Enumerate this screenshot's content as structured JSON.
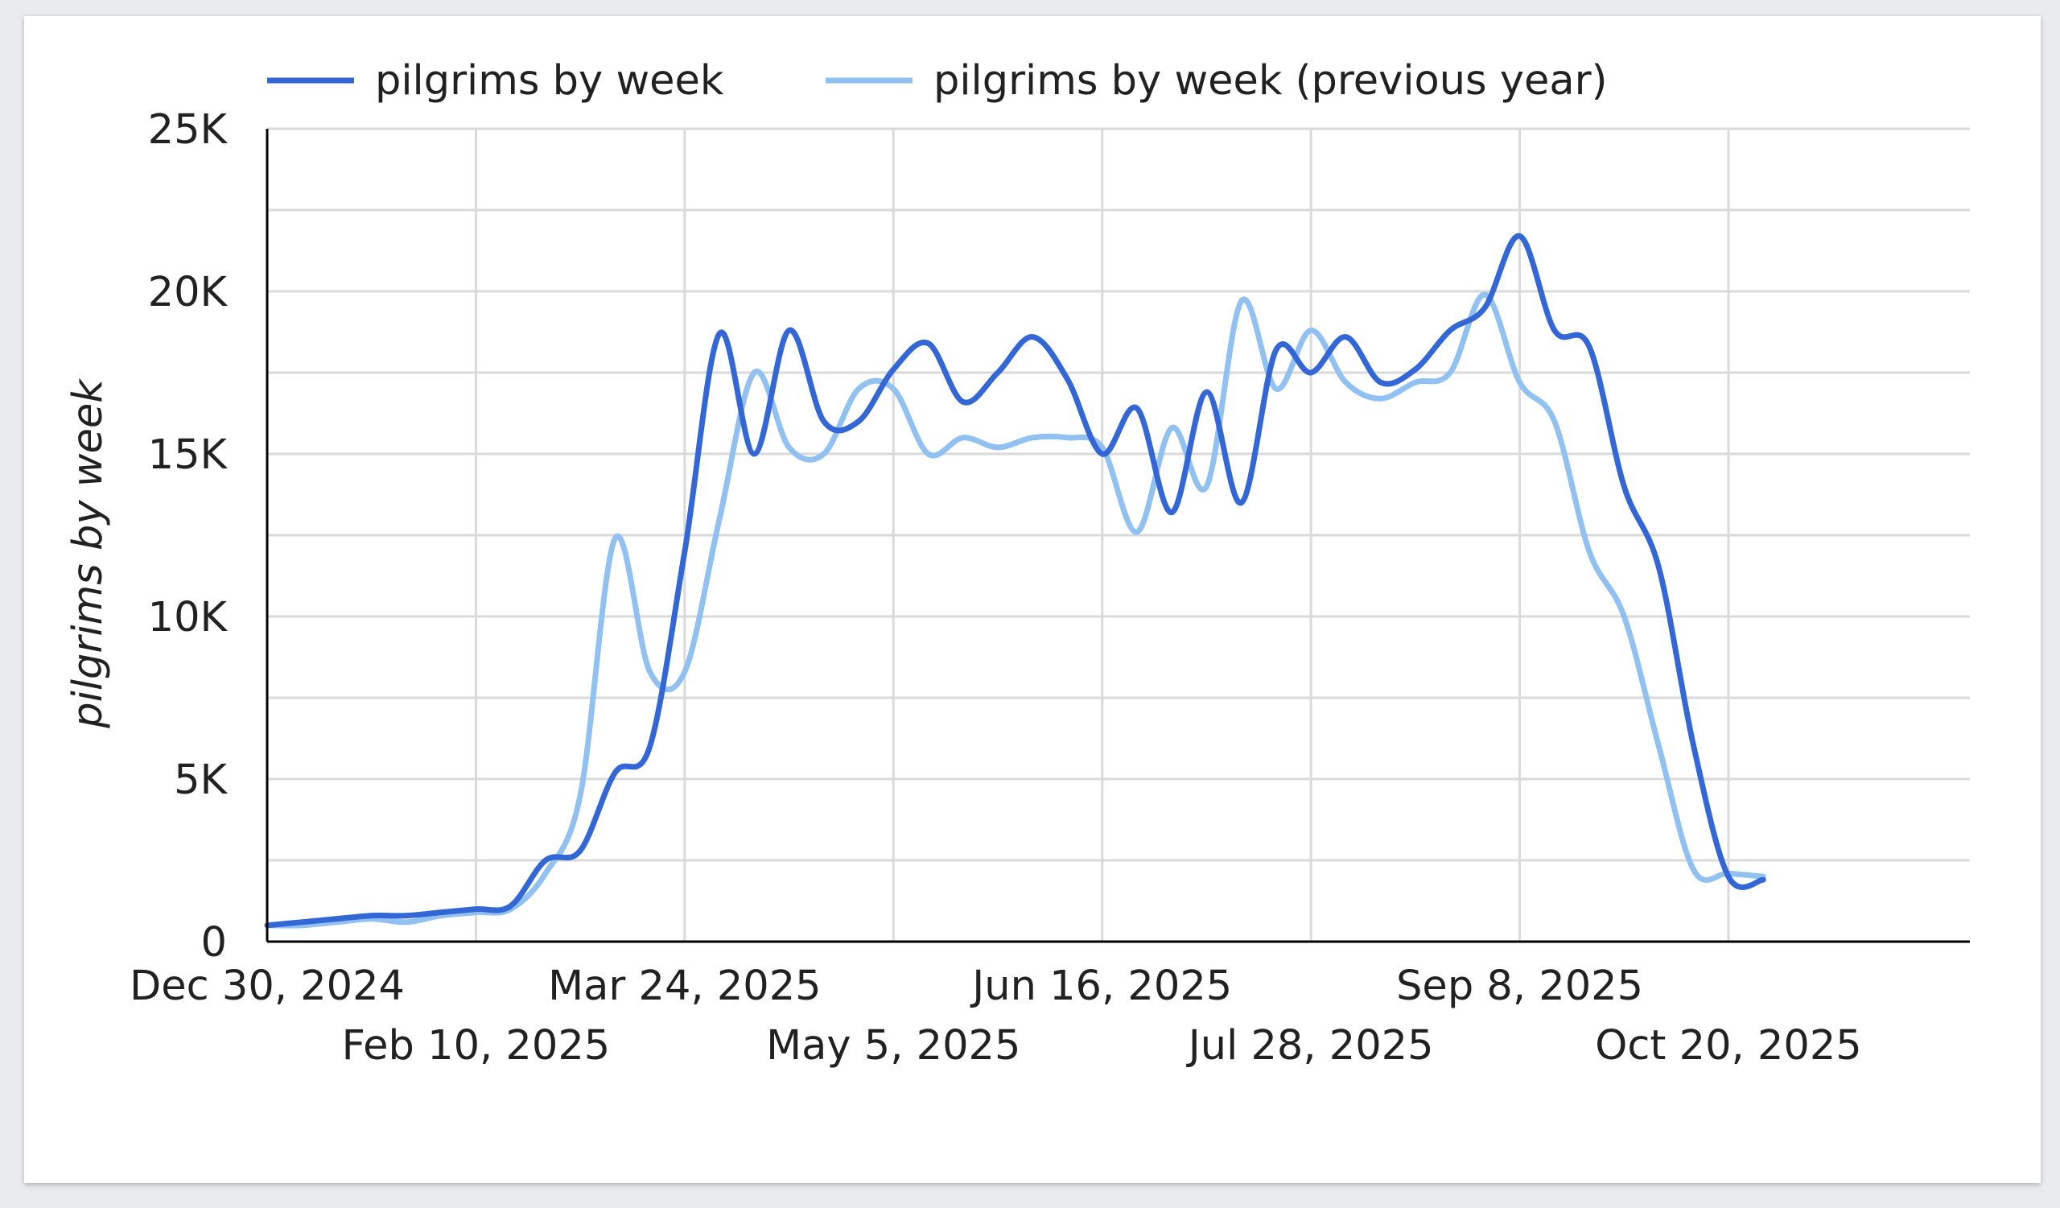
{
  "chart_data": {
    "type": "line",
    "title": "",
    "xlabel": "",
    "ylabel": "pilgrims by week",
    "ylim": [
      0,
      25000
    ],
    "yticks": [
      {
        "value": 0,
        "label": "0"
      },
      {
        "value": 5000,
        "label": "5K"
      },
      {
        "value": 10000,
        "label": "10K"
      },
      {
        "value": 15000,
        "label": "15K"
      },
      {
        "value": 20000,
        "label": "20K"
      },
      {
        "value": 25000,
        "label": "25K"
      }
    ],
    "xlim": [
      "2024-12-30",
      "2025-10-20"
    ],
    "xticks": [
      {
        "date": "2024-12-30",
        "label": "Dec 30, 2024",
        "row": 0
      },
      {
        "date": "2025-02-10",
        "label": "Feb 10, 2025",
        "row": 1
      },
      {
        "date": "2025-03-24",
        "label": "Mar 24, 2025",
        "row": 0
      },
      {
        "date": "2025-05-05",
        "label": "May 5, 2025",
        "row": 1
      },
      {
        "date": "2025-06-16",
        "label": "Jun 16, 2025",
        "row": 0
      },
      {
        "date": "2025-07-28",
        "label": "Jul 28, 2025",
        "row": 1
      },
      {
        "date": "2025-09-08",
        "label": "Sep 8, 2025",
        "row": 0
      },
      {
        "date": "2025-10-20",
        "label": "Oct 20, 2025",
        "row": 1
      }
    ],
    "grid": true,
    "legend_position": "top-left",
    "x": [
      "2024-12-30",
      "2025-01-06",
      "2025-01-13",
      "2025-01-20",
      "2025-01-27",
      "2025-02-03",
      "2025-02-10",
      "2025-02-17",
      "2025-02-24",
      "2025-03-03",
      "2025-03-10",
      "2025-03-17",
      "2025-03-24",
      "2025-03-31",
      "2025-04-07",
      "2025-04-14",
      "2025-04-21",
      "2025-04-28",
      "2025-05-05",
      "2025-05-12",
      "2025-05-19",
      "2025-05-26",
      "2025-06-02",
      "2025-06-09",
      "2025-06-16",
      "2025-06-23",
      "2025-06-30",
      "2025-07-07",
      "2025-07-14",
      "2025-07-21",
      "2025-07-28",
      "2025-08-04",
      "2025-08-11",
      "2025-08-18",
      "2025-08-25",
      "2025-09-01",
      "2025-09-08",
      "2025-09-15",
      "2025-09-22",
      "2025-09-29",
      "2025-10-06",
      "2025-10-13",
      "2025-10-20",
      "2025-10-27"
    ],
    "series": [
      {
        "name": "pilgrims by week",
        "color": "#3367d6",
        "values": [
          500,
          600,
          700,
          800,
          800,
          900,
          1000,
          1100,
          2500,
          2800,
          5200,
          6000,
          12000,
          18700,
          15000,
          18800,
          16000,
          16000,
          17600,
          18400,
          16600,
          17500,
          18600,
          17300,
          15000,
          16400,
          13200,
          16900,
          13500,
          18200,
          17500,
          18600,
          17200,
          17600,
          18800,
          19500,
          21700,
          18800,
          18300,
          14000,
          11500,
          6000,
          2000,
          1900
        ]
      },
      {
        "name": "pilgrims by week (previous year)",
        "color": "#90c1f0",
        "values": [
          500,
          500,
          600,
          700,
          600,
          800,
          900,
          1000,
          2100,
          4500,
          12400,
          8300,
          8300,
          13000,
          17500,
          15200,
          15000,
          17000,
          17000,
          15000,
          15500,
          15200,
          15500,
          15500,
          15200,
          12600,
          15800,
          14000,
          19700,
          17000,
          18800,
          17200,
          16700,
          17200,
          17500,
          19900,
          17200,
          16000,
          12000,
          10000,
          6000,
          2200,
          2100,
          2000
        ]
      }
    ]
  }
}
